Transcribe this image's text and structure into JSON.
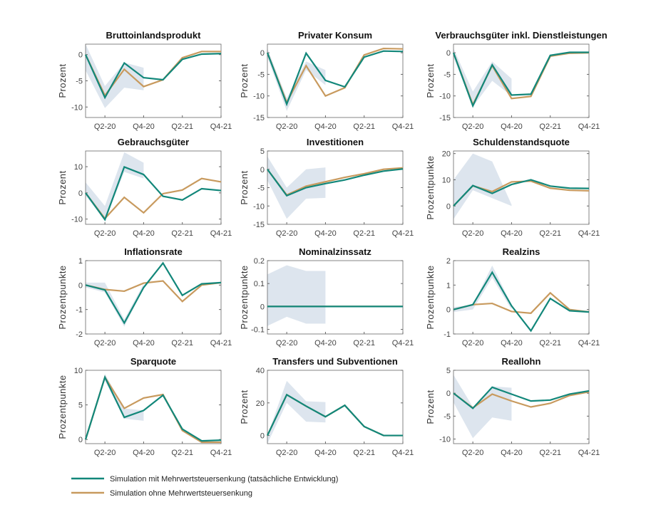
{
  "chart_data": {
    "type": "line",
    "x_tick_labels": [
      "Q2-20",
      "Q4-20",
      "Q2-21",
      "Q4-21"
    ],
    "x_tick_positions": [
      1,
      3,
      5,
      7
    ],
    "legend": {
      "placement": "bottom-left",
      "entries": [
        {
          "name": "Simulation mit Mehrwertsteuersenkung (tatsächliche Entwicklung)",
          "color": "#12877a"
        },
        {
          "name": "Simulation ohne Mehrwertsteuersenkung",
          "color": "#c89a5e"
        }
      ]
    },
    "colors": {
      "with": "#12877a",
      "without": "#c89a5e",
      "band": "#dde5ee"
    },
    "panels": [
      {
        "title": "Bruttoinlandsprodukt",
        "ylabel": "Prozent",
        "ylim": [
          -12,
          2
        ],
        "yticks": [
          0,
          -5,
          -10
        ],
        "with": [
          0,
          -8.2,
          -1.6,
          -4.4,
          -4.8,
          -0.9,
          0.1,
          0.2
        ],
        "without": [
          0,
          -7.8,
          -2.8,
          -6.1,
          -4.8,
          -0.6,
          0.6,
          0.6
        ],
        "band_upper": [
          2,
          -6,
          -1.5,
          -2.5
        ],
        "band_lower": [
          -3,
          -10.2,
          -6.3,
          -6.8
        ]
      },
      {
        "title": "Privater Konsum",
        "ylabel": "Prozent",
        "ylim": [
          -15,
          2
        ],
        "yticks": [
          0,
          -5,
          -10,
          -15
        ],
        "with": [
          0,
          -11.9,
          -0.1,
          -6.4,
          -7.9,
          -1,
          0.4,
          0.3
        ],
        "without": [
          0,
          -11.5,
          -3,
          -10,
          -8.1,
          -0.5,
          1,
          0.9
        ],
        "band_upper": [
          1,
          -10.5,
          -2,
          -4
        ],
        "band_lower": [
          -1,
          -13.5,
          -4,
          -7.5
        ]
      },
      {
        "title": "Verbrauchsgüter inkl. Dienstleistungen",
        "ylabel": "Prozent",
        "ylim": [
          -15,
          2
        ],
        "yticks": [
          0,
          -5,
          -10,
          -15
        ],
        "with": [
          0,
          -12.3,
          -2.8,
          -9.8,
          -9.6,
          -0.6,
          0.1,
          0.1
        ],
        "without": [
          0,
          -12,
          -3,
          -10.6,
          -10.1,
          -0.8,
          -0.1,
          0
        ],
        "band_upper": [
          1,
          -9,
          -2,
          -6
        ],
        "band_lower": [
          -1,
          -12.5,
          -6.5,
          -10
        ]
      },
      {
        "title": "Gebrauchsgüter",
        "ylabel": "Prozent",
        "ylim": [
          -12,
          16
        ],
        "yticks": [
          10,
          0,
          -10
        ],
        "with": [
          0,
          -10.2,
          9.9,
          7,
          -1.3,
          -2.7,
          1.6,
          0.9
        ],
        "without": [
          0,
          -9.8,
          -1.7,
          -7.6,
          -0.3,
          1.1,
          5.5,
          4.2
        ],
        "band_upper": [
          4,
          -5,
          15.5,
          11.5
        ],
        "band_lower": [
          -1,
          -10.5,
          8,
          5.5
        ]
      },
      {
        "title": "Investitionen",
        "ylabel": "Prozent",
        "ylim": [
          -15,
          5
        ],
        "yticks": [
          5,
          0,
          -5,
          -10,
          -15
        ],
        "with": [
          0,
          -7.2,
          -5,
          -3.9,
          -2.9,
          -1.6,
          -0.5,
          0.1
        ],
        "without": [
          0,
          -7,
          -4.6,
          -3.4,
          -2.2,
          -1.2,
          0,
          0.4
        ],
        "band_upper": [
          3.5,
          -5,
          0,
          0.5
        ],
        "band_lower": [
          -3,
          -13.5,
          -8,
          -7.8
        ]
      },
      {
        "title": "Schuldenstandsquote",
        "ylabel": "Prozentpunkte",
        "ylim": [
          -7,
          21
        ],
        "yticks": [
          20,
          10,
          0
        ],
        "with": [
          0,
          7.8,
          4.8,
          8.2,
          10,
          7.6,
          6.8,
          6.7
        ],
        "without": [
          0,
          7.7,
          5.5,
          9.2,
          9.5,
          6.8,
          6,
          5.8
        ],
        "band_upper": [
          10,
          20,
          17,
          0.5
        ],
        "band_lower": [
          -5,
          6,
          3,
          0
        ]
      },
      {
        "title": "Inflationsrate",
        "ylabel": "Prozentpunkte",
        "ylim": [
          -2,
          1
        ],
        "yticks": [
          1,
          0,
          -1,
          -2
        ],
        "with": [
          0,
          -0.2,
          -1.55,
          -0.1,
          0.9,
          -0.42,
          0.05,
          0.1
        ],
        "without": [
          0,
          -0.18,
          -0.25,
          0.08,
          0.17,
          -0.67,
          0,
          0.1
        ],
        "band_upper": [
          0.1,
          0.1,
          -1.4,
          0.05
        ],
        "band_lower": [
          -0.1,
          -0.3,
          -1.7,
          -0.15
        ]
      },
      {
        "title": "Nominalzinssatz",
        "ylabel": "Prozentpunkte",
        "ylim": [
          -0.12,
          0.2
        ],
        "yticks": [
          0.2,
          0.1,
          0,
          -0.1
        ],
        "with": [
          0,
          0,
          0,
          0,
          0,
          0,
          0,
          0
        ],
        "without": [
          0,
          0,
          0,
          0,
          0,
          0,
          0,
          0
        ],
        "band_upper": [
          0.14,
          0.18,
          0.155,
          0.155
        ],
        "band_lower": [
          -0.085,
          -0.045,
          -0.075,
          -0.075
        ]
      },
      {
        "title": "Realzins",
        "ylabel": "Prozentpunkte",
        "ylim": [
          -1,
          2
        ],
        "yticks": [
          2,
          1,
          0,
          -1
        ],
        "with": [
          0,
          0.2,
          1.52,
          0.15,
          -0.87,
          0.45,
          -0.05,
          -0.1
        ],
        "without": [
          0,
          0.2,
          0.25,
          -0.08,
          -0.15,
          0.68,
          0,
          -0.1
        ],
        "band_upper": [
          0.1,
          0.2,
          1.8,
          0.2
        ],
        "band_lower": [
          -0.1,
          0,
          1.3,
          0
        ]
      },
      {
        "title": "Sparquote",
        "ylabel": "Prozentpunkte",
        "ylim": [
          -0.6,
          10
        ],
        "yticks": [
          10,
          5,
          0
        ],
        "with": [
          0,
          9,
          3.2,
          4.2,
          6.4,
          1.5,
          -0.2,
          -0.1
        ],
        "without": [
          0,
          9,
          4.5,
          6,
          6.5,
          1.3,
          -0.4,
          -0.4
        ],
        "band_upper": [
          0,
          9.5,
          4.5,
          4.2
        ],
        "band_lower": [
          0,
          8.5,
          3,
          2.7
        ]
      },
      {
        "title": "Transfers und Subventionen",
        "ylabel": "Prozent",
        "ylim": [
          -5,
          40
        ],
        "yticks": [
          40,
          20,
          0
        ],
        "with": [
          0,
          25,
          18,
          11.5,
          18.5,
          5.5,
          0,
          0
        ],
        "without": [
          0,
          25,
          18,
          11.5,
          18.5,
          5.5,
          0,
          0
        ],
        "band_upper": [
          0,
          33.5,
          21,
          20.5
        ],
        "band_lower": [
          -5,
          20,
          8.5,
          8
        ]
      },
      {
        "title": "Reallohn",
        "ylabel": "Prozent",
        "ylim": [
          -11,
          5
        ],
        "yticks": [
          5,
          0,
          -5,
          -10
        ],
        "with": [
          0,
          -3.3,
          1.3,
          -0.2,
          -1.7,
          -1.5,
          -0.2,
          0.5
        ],
        "without": [
          0,
          -3.2,
          -0.2,
          -1.7,
          -3,
          -2.2,
          -0.5,
          0.3
        ],
        "band_upper": [
          4,
          -3,
          1.5,
          1.2
        ],
        "band_lower": [
          -2,
          -9.8,
          -5.3,
          -6
        ]
      }
    ]
  }
}
